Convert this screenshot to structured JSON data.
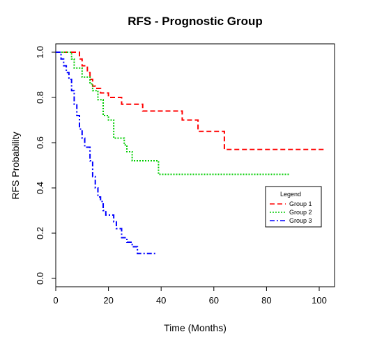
{
  "chart_data": {
    "type": "line",
    "title": "RFS - Prognostic Group",
    "xlabel": "Time (Months)",
    "ylabel": "RFS Probability",
    "xlim": [
      0,
      105
    ],
    "ylim": [
      0.0,
      1.0
    ],
    "xticks": [
      "0",
      "20",
      "40",
      "60",
      "80",
      "100"
    ],
    "yticks": [
      "0.0",
      "0.2",
      "0.4",
      "0.6",
      "0.8",
      "1.0"
    ],
    "grid": false,
    "legend": {
      "title": "Legend",
      "placement": "right"
    },
    "series": [
      {
        "name": "Group 1",
        "color": "#ff0000",
        "dash": "dashed",
        "x": [
          0,
          9,
          10,
          12,
          13,
          14,
          15,
          17,
          20,
          25,
          33,
          48,
          54,
          64,
          102
        ],
        "y": [
          1.0,
          0.97,
          0.94,
          0.91,
          0.88,
          0.85,
          0.84,
          0.82,
          0.8,
          0.77,
          0.74,
          0.7,
          0.65,
          0.57,
          0.57
        ]
      },
      {
        "name": "Group 2",
        "color": "#00cc00",
        "dash": "dotted",
        "x": [
          0,
          6,
          7,
          10,
          13,
          14,
          16,
          18,
          20,
          22,
          26,
          27,
          29,
          39,
          89
        ],
        "y": [
          1.0,
          0.97,
          0.93,
          0.89,
          0.86,
          0.83,
          0.79,
          0.72,
          0.7,
          0.62,
          0.59,
          0.56,
          0.52,
          0.46,
          0.46
        ]
      },
      {
        "name": "Group 3",
        "color": "#0000ff",
        "dash": "dashdot",
        "x": [
          0,
          2,
          3,
          4,
          5,
          6,
          7,
          8,
          9,
          10,
          11,
          13,
          14,
          15,
          16,
          17,
          18,
          19,
          22,
          23,
          25,
          27,
          29,
          31,
          38
        ],
        "y": [
          1.0,
          0.97,
          0.94,
          0.91,
          0.88,
          0.83,
          0.77,
          0.72,
          0.66,
          0.62,
          0.58,
          0.52,
          0.45,
          0.4,
          0.36,
          0.34,
          0.3,
          0.28,
          0.25,
          0.22,
          0.18,
          0.16,
          0.14,
          0.11,
          0.11
        ]
      }
    ]
  }
}
